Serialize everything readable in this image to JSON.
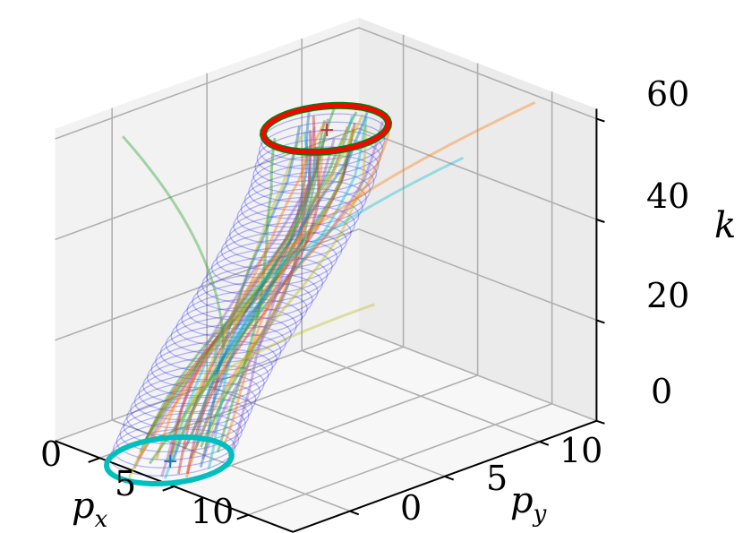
{
  "chart_data": {
    "type": "line",
    "projection": "3d",
    "axes": {
      "x": {
        "label_main": "p",
        "label_sub": "x",
        "ticks": [
          "0",
          "5",
          "10"
        ],
        "tick_values": [
          0,
          5,
          10
        ],
        "range": [
          -3,
          13
        ]
      },
      "y": {
        "label_main": "p",
        "label_sub": "y",
        "ticks": [
          "0",
          "5",
          "10"
        ],
        "tick_values": [
          0,
          5,
          10
        ],
        "range": [
          -3,
          13
        ]
      },
      "z": {
        "label": "k",
        "ticks": [
          "0",
          "20",
          "40",
          "60"
        ],
        "tick_values": [
          0,
          20,
          40,
          60
        ],
        "range": [
          0,
          62
        ]
      }
    },
    "grid": true,
    "tube": {
      "color": "#0000ff",
      "radius": 2.6,
      "centers": [
        {
          "k": 0,
          "px": 2.5,
          "py": -1.3
        },
        {
          "k": 10,
          "px": 3.0,
          "py": -0.5
        },
        {
          "k": 20,
          "px": 3.6,
          "py": 0.5
        },
        {
          "k": 30,
          "px": 4.2,
          "py": 1.9
        },
        {
          "k": 40,
          "px": 4.7,
          "py": 3.2
        },
        {
          "k": 50,
          "px": 5.0,
          "py": 4.3
        },
        {
          "k": 60,
          "px": 5.0,
          "py": 5.0
        }
      ]
    },
    "start_set": {
      "k": 0,
      "center": [
        2.5,
        -1.3
      ],
      "radius": 2.6,
      "color": "#00bfbf",
      "marker": "+"
    },
    "target_set": {
      "k": 60,
      "center": [
        5.0,
        5.0
      ],
      "radius": 2.6,
      "color": "#ff0000",
      "inner_color": "#008000",
      "marker": "+"
    },
    "trajectory_colors": [
      "#2ca02c",
      "#ff7f0e",
      "#17becf",
      "#bcbd22",
      "#1f77b4",
      "#d62728",
      "#9467bd"
    ],
    "trajectory_count": 30,
    "outlier_trajectories": [
      {
        "color": "#ff7f0e",
        "end": [
          9.5,
          12.5,
          60
        ]
      },
      {
        "color": "#17becf",
        "end": [
          8.5,
          9.5,
          52
        ]
      },
      {
        "color": "#bcbd22",
        "end": [
          7.0,
          6.0,
          26
        ]
      },
      {
        "color": "#2ca02c",
        "end": [
          -1.0,
          -1.0,
          60
        ]
      }
    ]
  }
}
